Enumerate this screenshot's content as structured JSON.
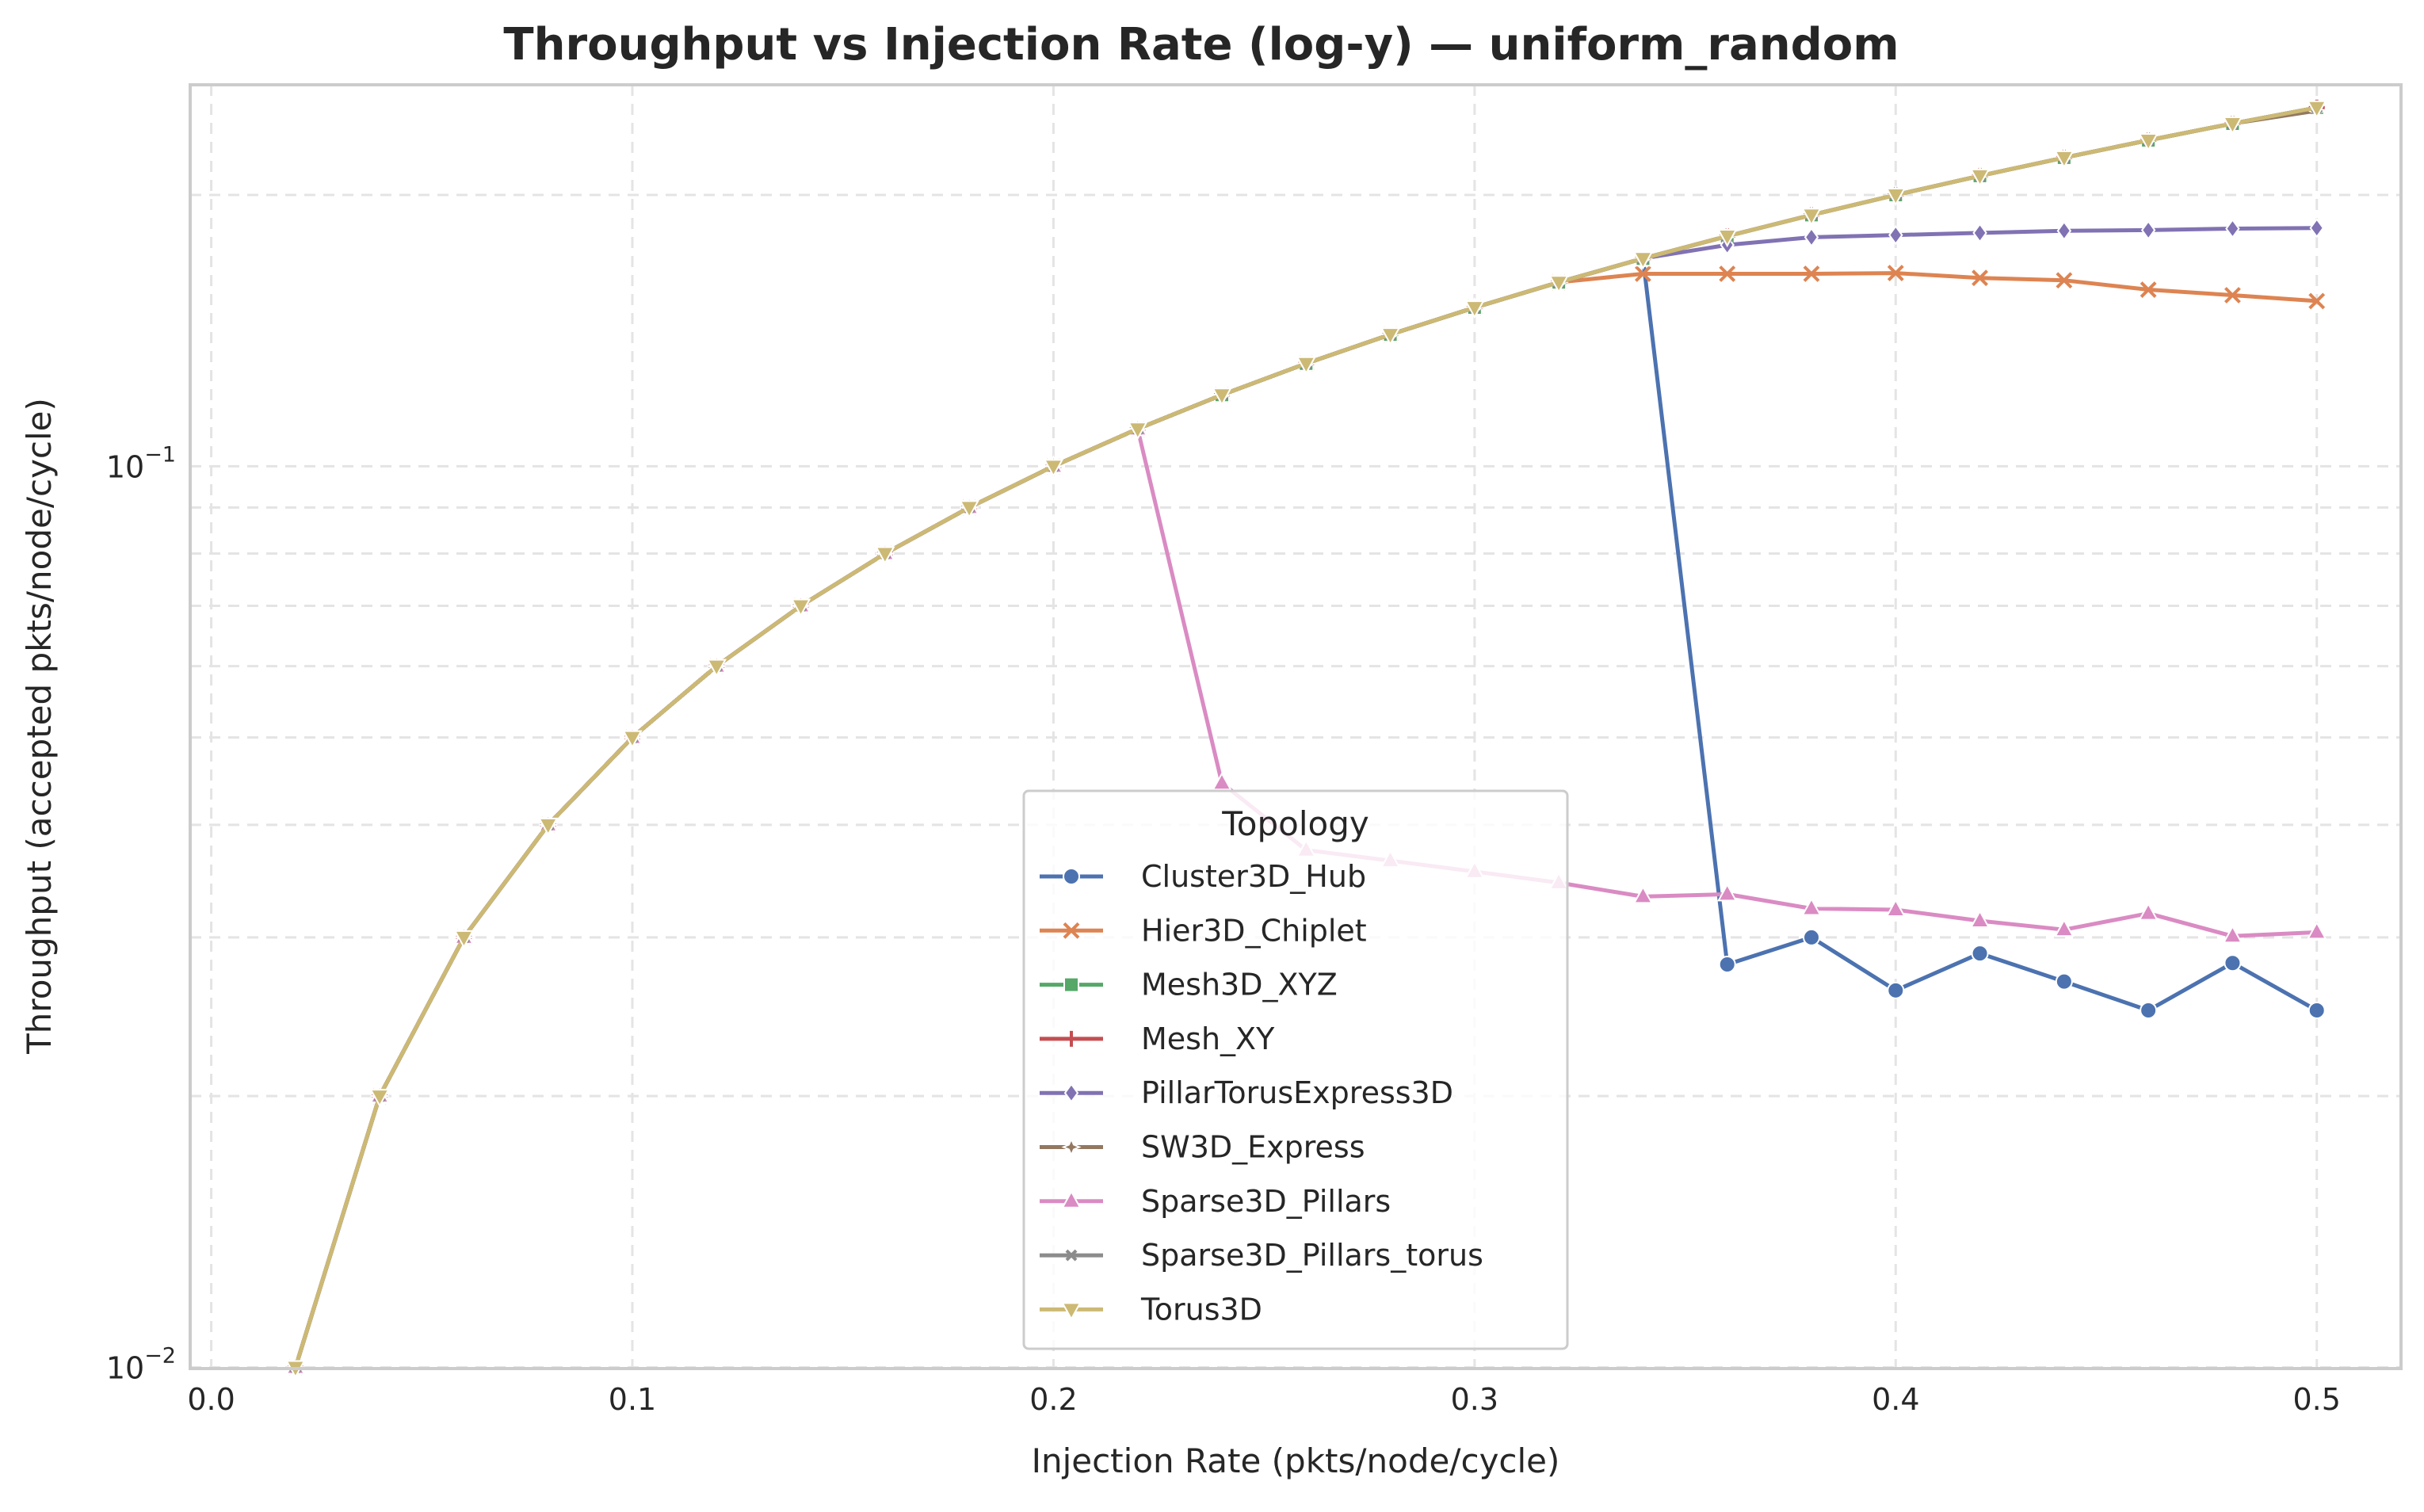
{
  "chart_data": {
    "type": "line",
    "title": "Throughput vs Injection Rate (log-y) — uniform_random",
    "xlabel": "Injection Rate (pkts/node/cycle)",
    "ylabel": "Throughput (accepted pkts/node/cycle)",
    "x_scale": "linear",
    "y_scale": "log",
    "xlim": [
      -0.005,
      0.52
    ],
    "ylim": [
      0.00997,
      0.265
    ],
    "x_ticks": [
      {
        "value": 0.0,
        "label": "0.0"
      },
      {
        "value": 0.1,
        "label": "0.1"
      },
      {
        "value": 0.2,
        "label": "0.2"
      },
      {
        "value": 0.3,
        "label": "0.3"
      },
      {
        "value": 0.4,
        "label": "0.4"
      },
      {
        "value": 0.5,
        "label": "0.5"
      }
    ],
    "y_ticks": [
      {
        "value": 0.01,
        "base": "10",
        "exp": "−2"
      },
      {
        "value": 0.1,
        "base": "10",
        "exp": "−1"
      }
    ],
    "y_minor_ticks": [
      0.02,
      0.03,
      0.04,
      0.05,
      0.06,
      0.07,
      0.08,
      0.09,
      0.2
    ],
    "grid": true,
    "legend": {
      "title": "Topology",
      "placement": "lower-center"
    },
    "series": [
      {
        "name": "Cluster3D_Hub",
        "color": "#4c72b0",
        "marker": "circle",
        "x": [
          0.02,
          0.04,
          0.06,
          0.08,
          0.1,
          0.12,
          0.14,
          0.16,
          0.18,
          0.2,
          0.22,
          0.24,
          0.26,
          0.28,
          0.3,
          0.32,
          0.34,
          0.36,
          0.38,
          0.4,
          0.42,
          0.44,
          0.46,
          0.48,
          0.5
        ],
        "y": [
          0.01,
          0.02,
          0.03,
          0.04,
          0.05,
          0.06,
          0.07,
          0.08,
          0.09,
          0.1,
          0.11,
          0.12,
          0.13,
          0.14,
          0.15,
          0.16,
          0.17,
          0.028,
          0.03,
          0.0262,
          0.0288,
          0.0268,
          0.0249,
          0.0281,
          0.0249
        ]
      },
      {
        "name": "Hier3D_Chiplet",
        "color": "#dd8452",
        "marker": "x",
        "x": [
          0.02,
          0.04,
          0.06,
          0.08,
          0.1,
          0.12,
          0.14,
          0.16,
          0.18,
          0.2,
          0.22,
          0.24,
          0.26,
          0.28,
          0.3,
          0.32,
          0.34,
          0.36,
          0.38,
          0.4,
          0.42,
          0.44,
          0.46,
          0.48,
          0.5
        ],
        "y": [
          0.01,
          0.02,
          0.03,
          0.04,
          0.05,
          0.06,
          0.07,
          0.08,
          0.09,
          0.1,
          0.11,
          0.12,
          0.13,
          0.14,
          0.15,
          0.16,
          0.1635,
          0.1635,
          0.1635,
          0.1638,
          0.1618,
          0.1608,
          0.157,
          0.1548,
          0.1525
        ]
      },
      {
        "name": "Mesh3D_XYZ",
        "color": "#55a868",
        "marker": "square",
        "x": [
          0.02,
          0.04,
          0.06,
          0.08,
          0.1,
          0.12,
          0.14,
          0.16,
          0.18,
          0.2,
          0.22,
          0.24,
          0.26,
          0.28,
          0.3,
          0.32,
          0.34,
          0.36,
          0.38,
          0.4,
          0.42,
          0.44,
          0.46,
          0.48,
          0.5
        ],
        "y": [
          0.01,
          0.02,
          0.03,
          0.04,
          0.05,
          0.06,
          0.07,
          0.08,
          0.09,
          0.1,
          0.11,
          0.12,
          0.13,
          0.14,
          0.15,
          0.16,
          0.17,
          0.18,
          0.19,
          0.2,
          0.21,
          0.22,
          0.23,
          0.24,
          0.25
        ]
      },
      {
        "name": "Mesh_XY",
        "color": "#c44e52",
        "marker": "plus",
        "x": [
          0.02,
          0.04,
          0.06,
          0.08,
          0.1,
          0.12,
          0.14,
          0.16,
          0.18,
          0.2,
          0.22,
          0.24,
          0.26,
          0.28,
          0.3,
          0.32,
          0.34,
          0.36,
          0.38,
          0.4,
          0.42,
          0.44,
          0.46,
          0.48,
          0.5
        ],
        "y": [
          0.01,
          0.02,
          0.03,
          0.04,
          0.05,
          0.06,
          0.07,
          0.08,
          0.09,
          0.1,
          0.11,
          0.12,
          0.13,
          0.14,
          0.15,
          0.16,
          0.17,
          0.18,
          0.19,
          0.2,
          0.21,
          0.22,
          0.23,
          0.24,
          0.25
        ]
      },
      {
        "name": "PillarTorusExpress3D",
        "color": "#8172b3",
        "marker": "diamond",
        "x": [
          0.02,
          0.04,
          0.06,
          0.08,
          0.1,
          0.12,
          0.14,
          0.16,
          0.18,
          0.2,
          0.22,
          0.24,
          0.26,
          0.28,
          0.3,
          0.32,
          0.34,
          0.36,
          0.38,
          0.4,
          0.42,
          0.44,
          0.46,
          0.48,
          0.5
        ],
        "y": [
          0.01,
          0.02,
          0.03,
          0.04,
          0.05,
          0.06,
          0.07,
          0.08,
          0.09,
          0.1,
          0.11,
          0.12,
          0.13,
          0.14,
          0.15,
          0.16,
          0.17,
          0.176,
          0.1795,
          0.1805,
          0.1815,
          0.1825,
          0.1828,
          0.1835,
          0.1838
        ]
      },
      {
        "name": "SW3D_Express",
        "color": "#937860",
        "marker": "star",
        "x": [
          0.02,
          0.04,
          0.06,
          0.08,
          0.1,
          0.12,
          0.14,
          0.16,
          0.18,
          0.2,
          0.22,
          0.24,
          0.26,
          0.28,
          0.3,
          0.32,
          0.34,
          0.36,
          0.38,
          0.4,
          0.42,
          0.44,
          0.46,
          0.48,
          0.5
        ],
        "y": [
          0.01,
          0.02,
          0.03,
          0.04,
          0.05,
          0.06,
          0.07,
          0.08,
          0.09,
          0.1,
          0.11,
          0.12,
          0.13,
          0.14,
          0.15,
          0.16,
          0.17,
          0.18,
          0.19,
          0.2,
          0.21,
          0.22,
          0.23,
          0.24,
          0.248
        ]
      },
      {
        "name": "Sparse3D_Pillars",
        "color": "#da8bc3",
        "marker": "triangle-up",
        "x": [
          0.02,
          0.04,
          0.06,
          0.08,
          0.1,
          0.12,
          0.14,
          0.16,
          0.18,
          0.2,
          0.22,
          0.24,
          0.26,
          0.28,
          0.3,
          0.32,
          0.34,
          0.36,
          0.38,
          0.4,
          0.42,
          0.44,
          0.46,
          0.48,
          0.5
        ],
        "y": [
          0.01,
          0.02,
          0.03,
          0.04,
          0.05,
          0.06,
          0.07,
          0.08,
          0.09,
          0.1,
          0.11,
          0.0445,
          0.0375,
          0.0365,
          0.0355,
          0.0345,
          0.0333,
          0.0335,
          0.0323,
          0.0322,
          0.0313,
          0.0306,
          0.0319,
          0.0301,
          0.0304
        ]
      },
      {
        "name": "Sparse3D_Pillars_torus",
        "color": "#8c8c8c",
        "marker": "x-small",
        "x": [
          0.02,
          0.04,
          0.06,
          0.08,
          0.1,
          0.12,
          0.14,
          0.16,
          0.18,
          0.2,
          0.22,
          0.24,
          0.26,
          0.28,
          0.3,
          0.32,
          0.34,
          0.36,
          0.38,
          0.4,
          0.42,
          0.44,
          0.46,
          0.48,
          0.5
        ],
        "y": [
          0.01,
          0.02,
          0.03,
          0.04,
          0.05,
          0.06,
          0.07,
          0.08,
          0.09,
          0.1,
          0.11,
          0.12,
          0.13,
          0.14,
          0.15,
          0.16,
          0.17,
          0.18,
          0.19,
          0.2,
          0.21,
          0.22,
          0.23,
          0.24,
          0.25
        ]
      },
      {
        "name": "Torus3D",
        "color": "#ccb974",
        "marker": "triangle-down",
        "x": [
          0.02,
          0.04,
          0.06,
          0.08,
          0.1,
          0.12,
          0.14,
          0.16,
          0.18,
          0.2,
          0.22,
          0.24,
          0.26,
          0.28,
          0.3,
          0.32,
          0.34,
          0.36,
          0.38,
          0.4,
          0.42,
          0.44,
          0.46,
          0.48,
          0.5
        ],
        "y": [
          0.01,
          0.02,
          0.03,
          0.04,
          0.05,
          0.06,
          0.07,
          0.08,
          0.09,
          0.1,
          0.11,
          0.12,
          0.13,
          0.14,
          0.15,
          0.16,
          0.17,
          0.18,
          0.19,
          0.2,
          0.21,
          0.22,
          0.23,
          0.24,
          0.25
        ]
      }
    ]
  }
}
